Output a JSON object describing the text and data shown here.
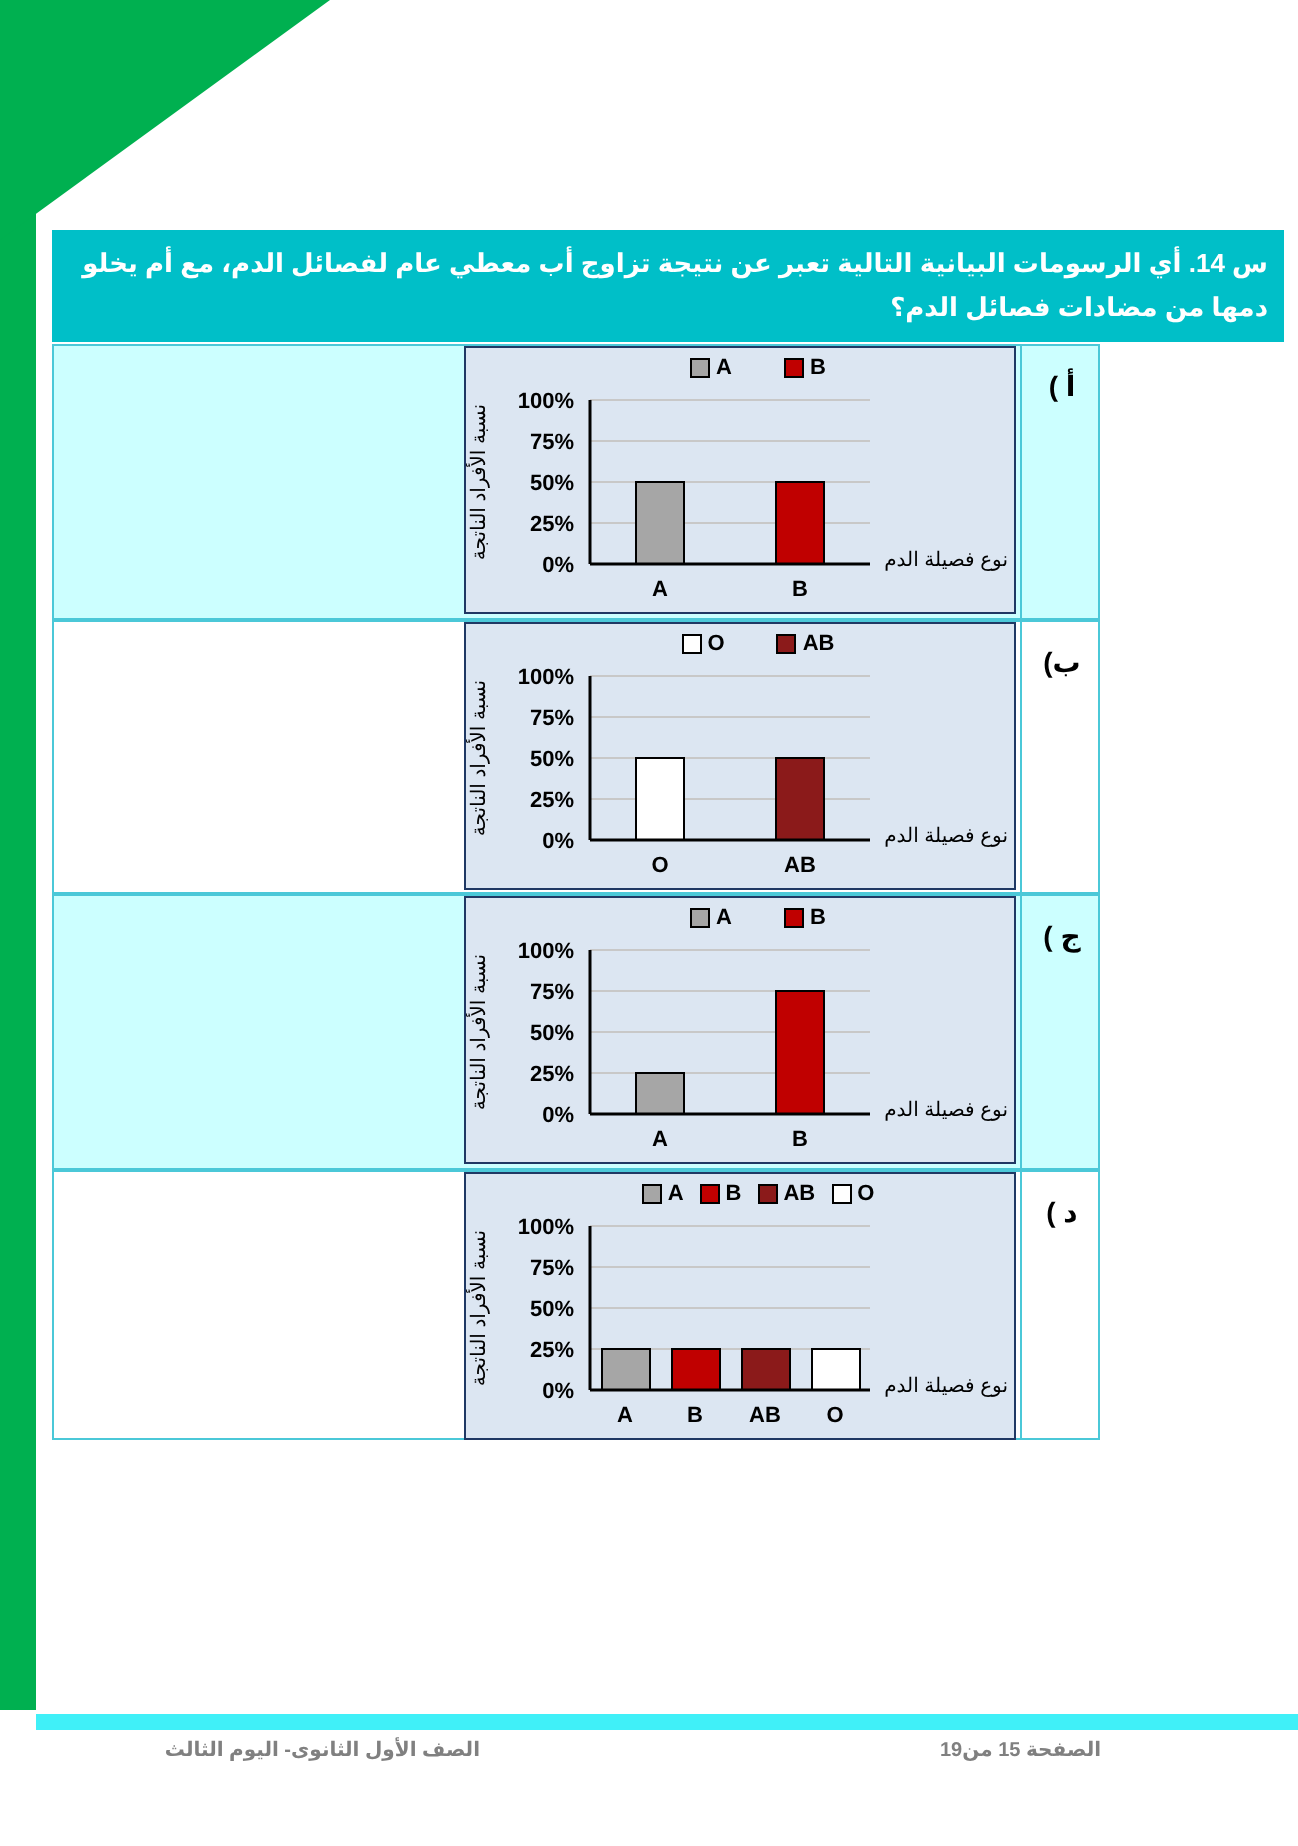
{
  "chart_data": [
    {
      "type": "bar",
      "xlabel": "نوع فصيلة الدم",
      "ylabel": "نسبة الأفراد الناتجة",
      "categories": [
        "A",
        "B"
      ],
      "stacked": true,
      "series": [
        {
          "name": "A",
          "color": "#a6a6a6",
          "values": [
            50,
            null
          ]
        },
        {
          "name": "B",
          "color": "#c00000",
          "values": [
            null,
            50
          ]
        }
      ],
      "ylim": [
        0,
        100
      ],
      "yticks": [
        {
          "value": 0,
          "label": "0%"
        },
        {
          "value": 25,
          "label": "25%"
        },
        {
          "value": 50,
          "label": "50%"
        },
        {
          "value": 75,
          "label": "75%"
        },
        {
          "value": 100,
          "label": "100%"
        }
      ],
      "grid": "y",
      "legend": "top",
      "annotations": [
        "أ )",
        "س 14. أي الرسومات البيانية التالية تعبر عن نتيجة تزاوج أب معطي عام لفصائل الدم، مع أم يخلو دمها من مضادات فصائل الدم؟"
      ]
    },
    {
      "type": "bar",
      "xlabel": "نوع فصيلة الدم",
      "ylabel": "نسبة الأفراد الناتجة",
      "categories": [
        "O",
        "AB"
      ],
      "stacked": true,
      "series": [
        {
          "name": "O",
          "color": "#ffffff",
          "values": [
            50,
            null
          ]
        },
        {
          "name": "AB",
          "color": "#8b1a1a",
          "values": [
            null,
            50
          ]
        }
      ],
      "ylim": [
        0,
        100
      ],
      "yticks": [
        {
          "value": 0,
          "label": "0%"
        },
        {
          "value": 25,
          "label": "25%"
        },
        {
          "value": 50,
          "label": "50%"
        },
        {
          "value": 75,
          "label": "75%"
        },
        {
          "value": 100,
          "label": "100%"
        }
      ],
      "grid": "y",
      "legend": "top",
      "annotations": [
        "ب)"
      ]
    },
    {
      "type": "bar",
      "xlabel": "نوع فصيلة الدم",
      "ylabel": "نسبة الأفراد الناتجة",
      "categories": [
        "A",
        "B"
      ],
      "stacked": true,
      "series": [
        {
          "name": "A",
          "color": "#a6a6a6",
          "values": [
            25,
            null
          ]
        },
        {
          "name": "B",
          "color": "#c00000",
          "values": [
            null,
            75
          ]
        }
      ],
      "ylim": [
        0,
        100
      ],
      "yticks": [
        {
          "value": 0,
          "label": "0%"
        },
        {
          "value": 25,
          "label": "25%"
        },
        {
          "value": 50,
          "label": "50%"
        },
        {
          "value": 75,
          "label": "75%"
        },
        {
          "value": 100,
          "label": "100%"
        }
      ],
      "grid": "y",
      "legend": "top",
      "annotations": [
        "ج )"
      ]
    },
    {
      "type": "bar",
      "xlabel": "نوع فصيلة الدم",
      "ylabel": "نسبة الأفراد الناتجة",
      "categories": [
        "A",
        "B",
        "AB",
        "O"
      ],
      "stacked": true,
      "series": [
        {
          "name": "A",
          "color": "#a6a6a6",
          "values": [
            25,
            null,
            null,
            null
          ]
        },
        {
          "name": "B",
          "color": "#c00000",
          "values": [
            null,
            25,
            null,
            null
          ]
        },
        {
          "name": "AB",
          "color": "#8b1a1a",
          "values": [
            null,
            null,
            25,
            null
          ]
        },
        {
          "name": "O",
          "color": "#ffffff",
          "values": [
            null,
            null,
            null,
            25
          ]
        }
      ],
      "ylim": [
        0,
        100
      ],
      "yticks": [
        {
          "value": 0,
          "label": "0%"
        },
        {
          "value": 25,
          "label": "25%"
        },
        {
          "value": 50,
          "label": "50%"
        },
        {
          "value": 75,
          "label": "75%"
        },
        {
          "value": 100,
          "label": "100%"
        }
      ],
      "grid": "y",
      "legend": "top",
      "annotations": [
        "د )",
        "الصف الأول الثانوى- اليوم الثالث",
        "الصفحة 15 من19"
      ]
    }
  ]
}
